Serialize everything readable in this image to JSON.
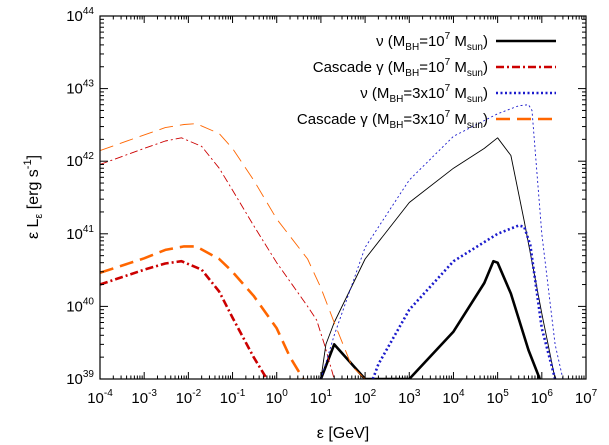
{
  "chart_data": {
    "type": "line",
    "title": "",
    "x_scale": "log",
    "y_scale": "log",
    "xlim": [
      0.0001,
      10000000
    ],
    "ylim": [
      1e+39,
      1e+44
    ],
    "xlabel": {
      "main": "ε [GeV]"
    },
    "ylabel": {
      "pre": "ε L",
      "sub": "ε",
      "unit": " [erg s",
      "exp": "-1",
      "close": "]"
    },
    "x_ticks": [
      {
        "value": 0.0001,
        "base": "10",
        "exp": "-4"
      },
      {
        "value": 0.001,
        "base": "10",
        "exp": "-3"
      },
      {
        "value": 0.01,
        "base": "10",
        "exp": "-2"
      },
      {
        "value": 0.1,
        "base": "10",
        "exp": "-1"
      },
      {
        "value": 1,
        "base": "10",
        "exp": "0"
      },
      {
        "value": 10,
        "base": "10",
        "exp": "1"
      },
      {
        "value": 100,
        "base": "10",
        "exp": "2"
      },
      {
        "value": 1000,
        "base": "10",
        "exp": "3"
      },
      {
        "value": 10000,
        "base": "10",
        "exp": "4"
      },
      {
        "value": 100000,
        "base": "10",
        "exp": "5"
      },
      {
        "value": 1000000,
        "base": "10",
        "exp": "6"
      },
      {
        "value": 10000000,
        "base": "10",
        "exp": "7"
      }
    ],
    "y_ticks": [
      {
        "value": 1e+39,
        "base": "10",
        "exp": "39"
      },
      {
        "value": 1e+40,
        "base": "10",
        "exp": "40"
      },
      {
        "value": 1e+41,
        "base": "10",
        "exp": "41"
      },
      {
        "value": 1e+42,
        "base": "10",
        "exp": "42"
      },
      {
        "value": 1e+43,
        "base": "10",
        "exp": "43"
      },
      {
        "value": 1e+44,
        "base": "10",
        "exp": "44"
      }
    ],
    "legend": {
      "position": "top-right",
      "entries": [
        {
          "pre": "ν (M",
          "sub": "BH",
          "mid": "=10",
          "sup": "7",
          "post": " M",
          "sub2": "sun",
          "end": ")",
          "series": 0
        },
        {
          "pre": "Cascade γ (M",
          "sub": "BH",
          "mid": "=10",
          "sup": "7",
          "post": " M",
          "sub2": "sun",
          "end": ")",
          "series": 2
        },
        {
          "pre": "ν (M",
          "sub": "BH",
          "mid": "=3x10",
          "sup": "7",
          "post": " M",
          "sub2": "sun",
          "end": ")",
          "series": 4
        },
        {
          "pre": "Cascade γ (M",
          "sub": "BH",
          "mid": "=3x10",
          "sup": "7",
          "post": " M",
          "sub2": "sun",
          "end": ")",
          "series": 6
        }
      ]
    },
    "series": [
      {
        "group": "nu_1e7",
        "style": "thick",
        "color": "#000000",
        "dash": "",
        "x": [
          10,
          20,
          100,
          1000,
          10000,
          50000,
          80000,
          100000,
          200000,
          500000,
          900000
        ],
        "y": [
          1e+39,
          3e+39,
          1e+39,
          1e+39,
          4.5e+39,
          2.1e+40,
          4.2e+40,
          4e+40,
          1.5e+40,
          2.5e+39,
          1e+39
        ]
      },
      {
        "group": "nu_1e7",
        "style": "thin",
        "color": "#000000",
        "dash": "",
        "x": [
          10,
          13,
          20,
          100,
          1000,
          10000,
          50000,
          100000,
          200000,
          400000,
          1000000,
          2000000
        ],
        "y": [
          1e+39,
          3e+39,
          6e+39,
          4.5e+40,
          2.7e+41,
          8e+41,
          1.5e+42,
          2.1e+42,
          1.2e+42,
          1.5e+41,
          8e+39,
          1e+39
        ]
      },
      {
        "group": "cas_1e7",
        "style": "thick",
        "color": "#cc0000",
        "dash": "8,3,2,3",
        "x": [
          0.0001,
          0.001,
          0.003,
          0.007,
          0.02,
          0.05,
          0.1,
          0.3,
          0.6
        ],
        "y": [
          2e+40,
          3.2e+40,
          3.9e+40,
          4.2e+40,
          3.2e+40,
          1.6e+40,
          7e+39,
          2e+39,
          1e+39
        ]
      },
      {
        "group": "cas_1e7",
        "style": "thin",
        "color": "#cc0000",
        "dash": "8,3,2,3",
        "x": [
          0.0001,
          0.001,
          0.003,
          0.007,
          0.02,
          0.05,
          0.1,
          0.3,
          1,
          5,
          8,
          12,
          20
        ],
        "y": [
          9e+41,
          1.5e+42,
          1.9e+42,
          2.1e+42,
          1.6e+42,
          8e+41,
          4e+41,
          1.3e+41,
          4e+40,
          1e+40,
          6.5e+39,
          3e+39,
          1e+39
        ]
      },
      {
        "group": "nu_3e7",
        "style": "thick",
        "color": "#1a1acc",
        "dash": "2,2.5",
        "x": [
          150,
          200,
          1000,
          10000,
          100000,
          300000,
          400000,
          550000,
          1000000,
          2000000
        ],
        "y": [
          1e+39,
          1.6e+39,
          9e+39,
          4.2e+40,
          1e+41,
          1.3e+41,
          1.25e+41,
          7e+40,
          5e+39,
          1e+39
        ]
      },
      {
        "group": "nu_3e7",
        "style": "thin",
        "color": "#1a1acc",
        "dash": "2,2.5",
        "x": [
          10,
          20,
          100,
          1000,
          10000,
          100000,
          300000,
          500000,
          600000,
          700000,
          1000000,
          2000000,
          3000000
        ],
        "y": [
          1e+39,
          4e+39,
          6.5e+40,
          5.5e+41,
          2.2e+42,
          4.5e+42,
          5.8e+42,
          6e+42,
          5e+42,
          1.5e+42,
          1e+41,
          3e+39,
          1e+39
        ]
      },
      {
        "group": "cas_3e7",
        "style": "thick",
        "color": "#ff6600",
        "dash": "14,7",
        "x": [
          0.0001,
          0.001,
          0.003,
          0.008,
          0.015,
          0.05,
          0.1,
          0.3,
          1,
          2,
          4
        ],
        "y": [
          2.9e+40,
          4.6e+40,
          6e+40,
          6.7e+40,
          6.7e+40,
          4.5e+40,
          3e+40,
          1.4e+40,
          5e+39,
          2e+39,
          1e+39
        ]
      },
      {
        "group": "cas_3e7",
        "style": "thin",
        "color": "#ff6600",
        "dash": "14,7",
        "x": [
          0.0001,
          0.001,
          0.003,
          0.008,
          0.015,
          0.05,
          0.1,
          0.3,
          1,
          5,
          10,
          20,
          50,
          100
        ],
        "y": [
          1.4e+42,
          2.3e+42,
          2.9e+42,
          3.2e+42,
          3.3e+42,
          2.4e+42,
          1.5e+42,
          5.5e+41,
          1.6e+41,
          4.5e+40,
          1.8e+40,
          6e+39,
          1.5e+39,
          1e+39
        ]
      }
    ]
  }
}
